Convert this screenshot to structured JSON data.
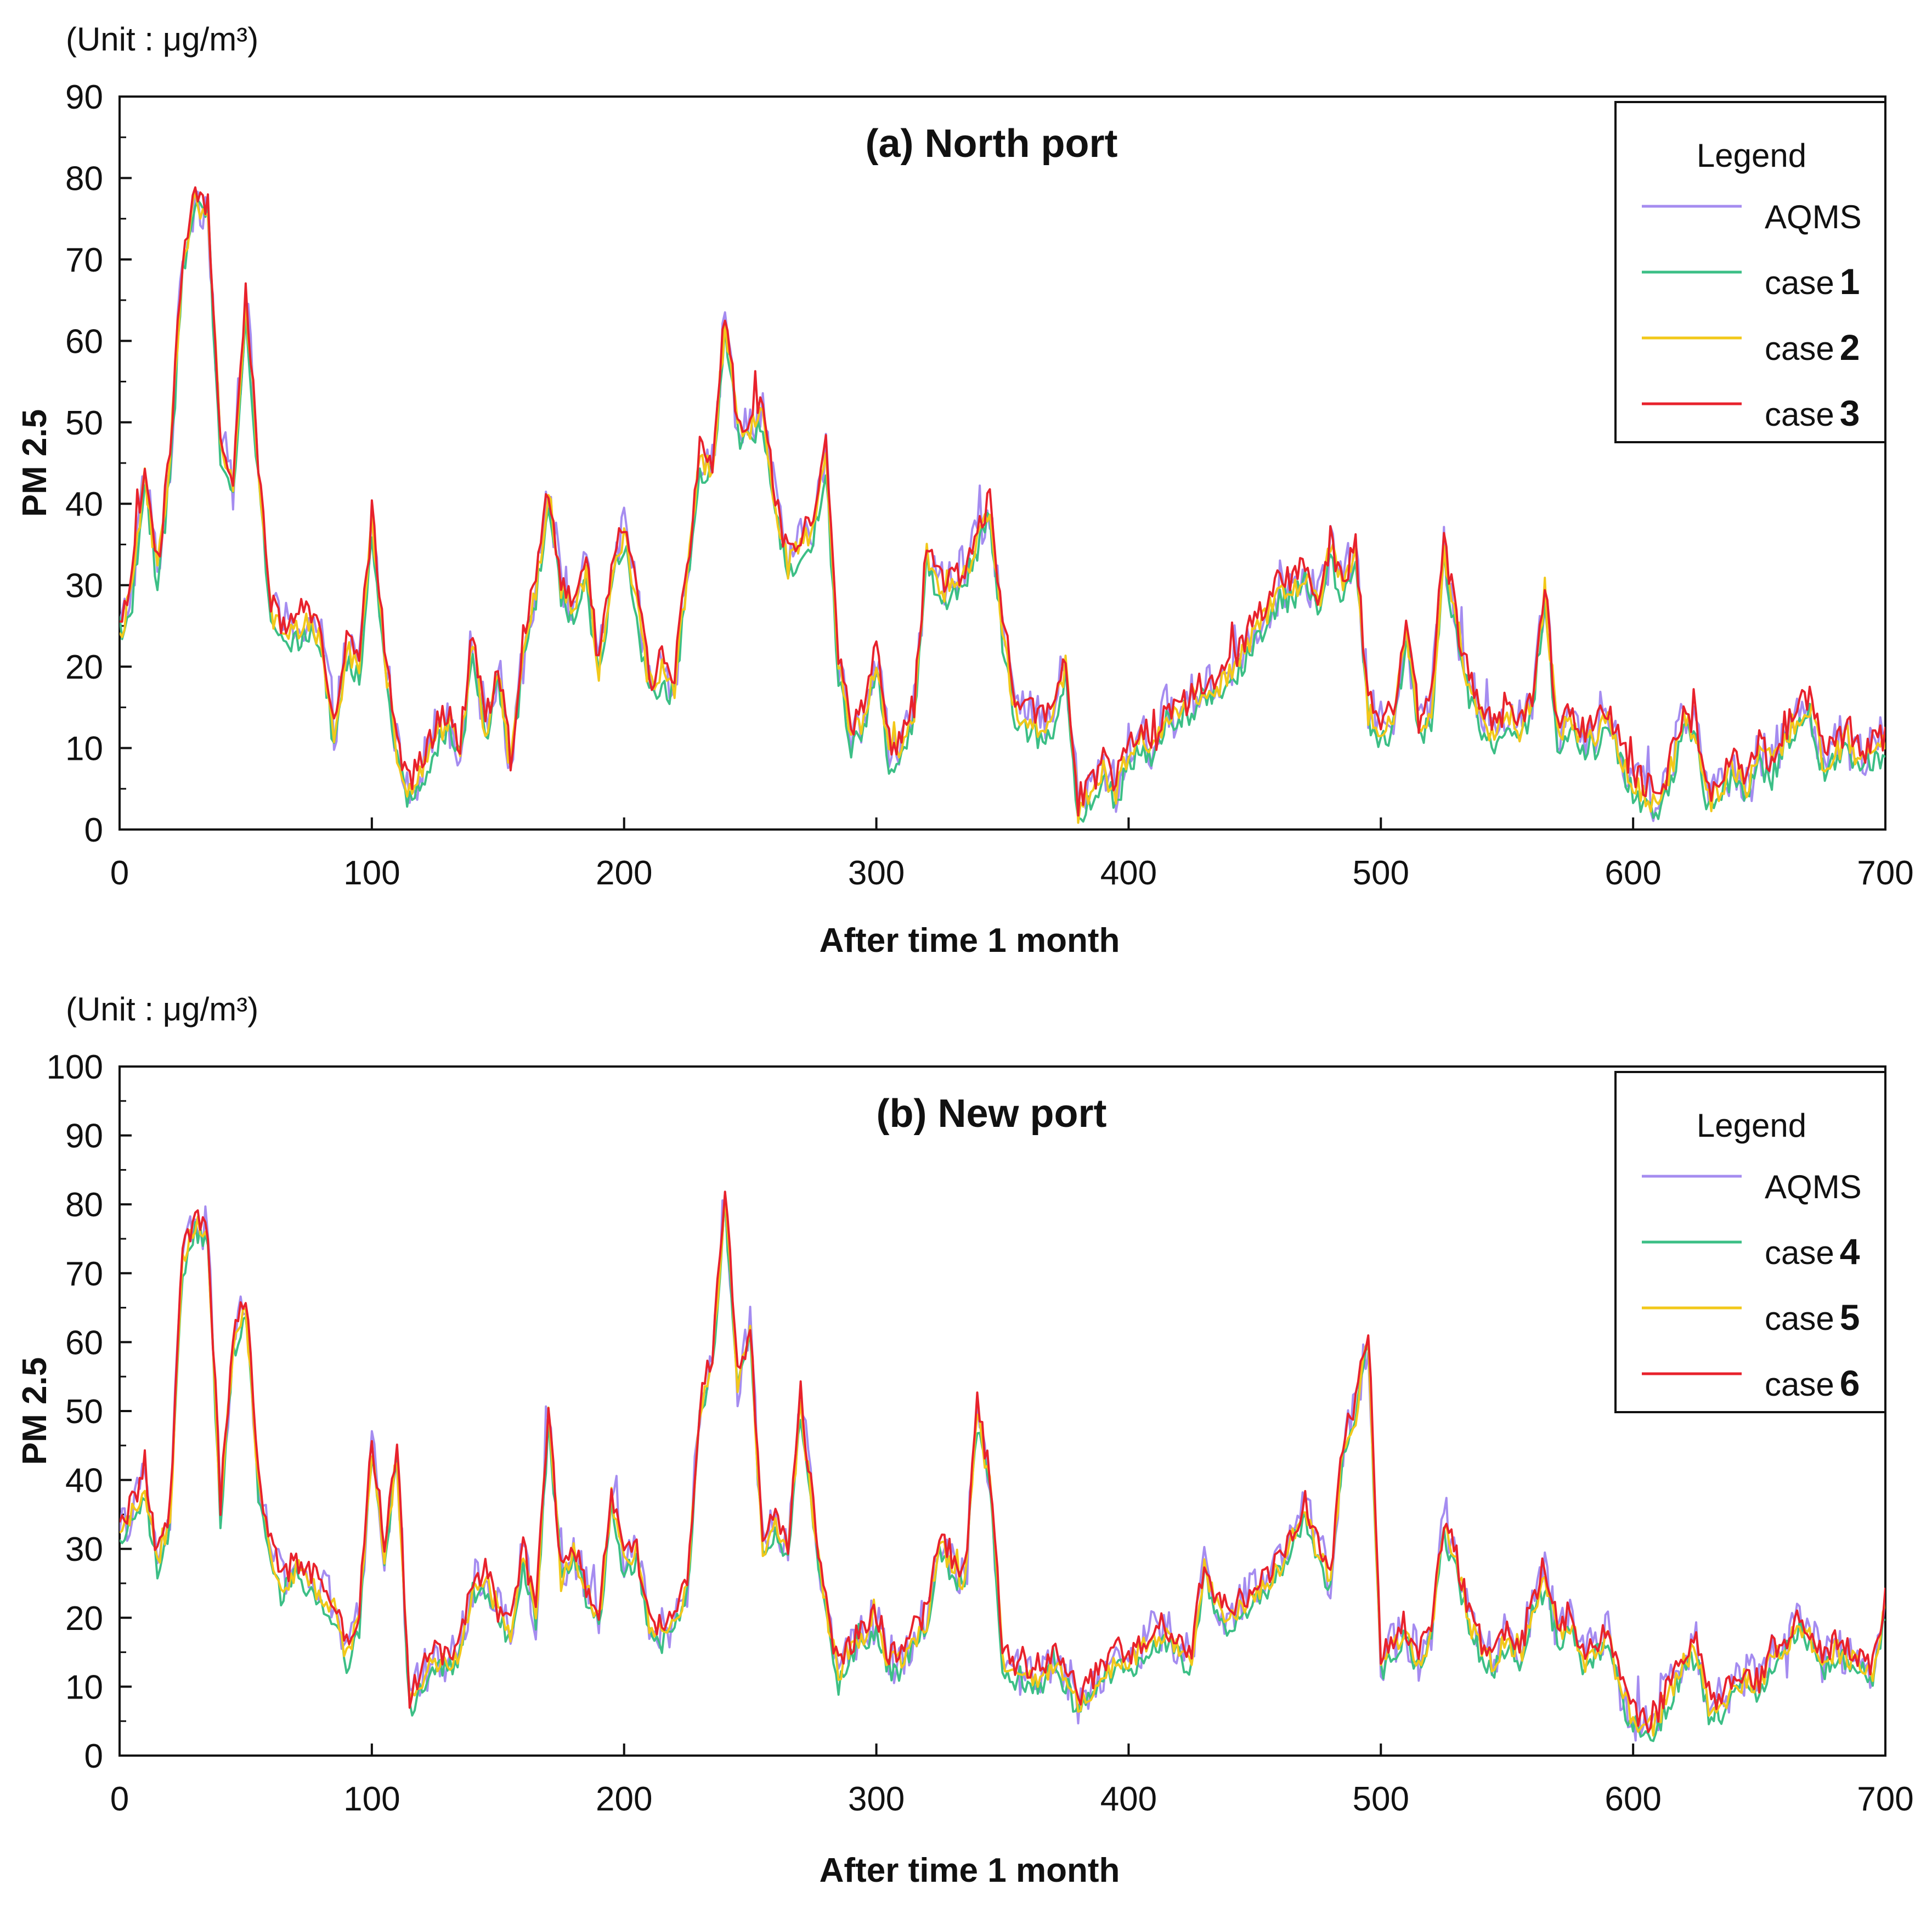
{
  "figure": {
    "description_hidden": false
  },
  "chart_data": [
    {
      "type": "line",
      "panel": "a",
      "title": "(a) North port",
      "unit_label": "(Unit : μg/m³)",
      "xlabel": "After time 1 month",
      "ylabel": "PM 2.5",
      "xlim": [
        0,
        700
      ],
      "ylim": [
        0,
        90
      ],
      "x_ticks": [
        "0",
        "100",
        "200",
        "300",
        "400",
        "500",
        "600",
        "700"
      ],
      "y_ticks": [
        "0",
        "10",
        "20",
        "30",
        "40",
        "50",
        "60",
        "70",
        "80",
        "90"
      ],
      "legend": {
        "title": "Legend",
        "position": "top-right",
        "entries": [
          {
            "prefix": "AQMS",
            "num": "",
            "color": "#a58cf0"
          },
          {
            "prefix": "case",
            "num": "1",
            "color": "#3cbf86"
          },
          {
            "prefix": "case",
            "num": "2",
            "color": "#f2c81a"
          },
          {
            "prefix": "case",
            "num": "3",
            "color": "#e8222c"
          }
        ]
      },
      "keypoints": {
        "x": [
          0,
          5,
          10,
          15,
          20,
          25,
          30,
          35,
          40,
          45,
          50,
          55,
          60,
          65,
          70,
          75,
          80,
          85,
          90,
          95,
          100,
          105,
          110,
          115,
          120,
          125,
          130,
          135,
          140,
          145,
          150,
          155,
          160,
          165,
          170,
          175,
          180,
          185,
          190,
          195,
          200,
          205,
          210,
          215,
          220,
          225,
          230,
          235,
          240,
          245,
          250,
          255,
          260,
          265,
          270,
          275,
          280,
          285,
          290,
          295,
          300,
          305,
          310,
          315,
          320,
          325,
          330,
          335,
          340,
          345,
          350,
          355,
          360,
          365,
          370,
          375,
          380,
          385,
          390,
          395,
          400,
          405,
          410,
          415,
          420,
          425,
          430,
          435,
          440,
          445,
          450,
          455,
          460,
          465,
          470,
          475,
          480,
          485,
          490,
          495,
          500,
          505,
          510,
          515,
          520,
          525,
          530,
          535,
          540,
          545,
          550,
          555,
          560,
          565,
          570,
          575,
          580,
          585,
          590,
          595,
          600,
          605,
          610,
          615,
          620,
          625,
          630,
          635,
          640,
          645,
          650,
          655,
          660,
          665,
          670,
          675,
          680,
          685,
          690,
          695,
          700
        ],
        "y": [
          24,
          30,
          44,
          32,
          45,
          70,
          78,
          76,
          48,
          42,
          66,
          45,
          27,
          25,
          25,
          26,
          24,
          12,
          22,
          20,
          38,
          22,
          10,
          5,
          8,
          12,
          14,
          10,
          24,
          12,
          20,
          8,
          23,
          30,
          42,
          30,
          28,
          32,
          20,
          32,
          37,
          28,
          18,
          20,
          18,
          32,
          46,
          45,
          63,
          50,
          50,
          52,
          40,
          33,
          35,
          38,
          46,
          20,
          12,
          14,
          22,
          10,
          10,
          15,
          35,
          30,
          30,
          32,
          36,
          40,
          25,
          15,
          14,
          13,
          14,
          21,
          3,
          5,
          8,
          5,
          10,
          12,
          10,
          15,
          14,
          16,
          18,
          18,
          20,
          22,
          25,
          27,
          30,
          30,
          32,
          28,
          35,
          30,
          35,
          15,
          13,
          14,
          25,
          13,
          15,
          35,
          25,
          18,
          14,
          12,
          15,
          13,
          16,
          30,
          12,
          14,
          12,
          12,
          14,
          10,
          6,
          5,
          3,
          8,
          14,
          12,
          4,
          6,
          8,
          6,
          10,
          8,
          12,
          14,
          16,
          9,
          10,
          12,
          9,
          10,
          11
        ]
      },
      "series_offsets": [
        {
          "name": "AQMS",
          "offset": 0.0,
          "noise": 3.2
        },
        {
          "name": "case 1",
          "offset": -1.8,
          "noise": 1.6
        },
        {
          "name": "case 2",
          "offset": -0.6,
          "noise": 1.6
        },
        {
          "name": "case 3",
          "offset": 0.6,
          "noise": 1.9
        }
      ]
    },
    {
      "type": "line",
      "panel": "b",
      "title": "(b) New port",
      "unit_label": "(Unit : μg/m³)",
      "xlabel": "After time 1 month",
      "ylabel": "PM 2.5",
      "xlim": [
        0,
        700
      ],
      "ylim": [
        0,
        100
      ],
      "x_ticks": [
        "0",
        "100",
        "200",
        "300",
        "400",
        "500",
        "600",
        "700"
      ],
      "y_ticks": [
        "0",
        "10",
        "20",
        "30",
        "40",
        "50",
        "60",
        "70",
        "80",
        "90",
        "100"
      ],
      "legend": {
        "title": "Legend",
        "position": "top-right",
        "entries": [
          {
            "prefix": "AQMS",
            "num": "",
            "color": "#a58cf0"
          },
          {
            "prefix": "case",
            "num": "4",
            "color": "#3cbf86"
          },
          {
            "prefix": "case",
            "num": "5",
            "color": "#f2c81a"
          },
          {
            "prefix": "case",
            "num": "6",
            "color": "#e8222c"
          }
        ]
      },
      "keypoints": {
        "x": [
          0,
          5,
          10,
          15,
          20,
          25,
          30,
          35,
          40,
          45,
          50,
          55,
          60,
          65,
          70,
          75,
          80,
          85,
          90,
          95,
          100,
          105,
          110,
          115,
          120,
          125,
          130,
          135,
          140,
          145,
          150,
          155,
          160,
          165,
          170,
          175,
          180,
          185,
          190,
          195,
          200,
          205,
          210,
          215,
          220,
          225,
          230,
          235,
          240,
          245,
          250,
          255,
          260,
          265,
          270,
          275,
          280,
          285,
          290,
          295,
          300,
          305,
          310,
          315,
          320,
          325,
          330,
          335,
          340,
          345,
          350,
          355,
          360,
          365,
          370,
          375,
          380,
          385,
          390,
          395,
          400,
          405,
          410,
          415,
          420,
          425,
          430,
          435,
          440,
          445,
          450,
          455,
          460,
          465,
          470,
          475,
          480,
          485,
          490,
          495,
          500,
          505,
          510,
          515,
          520,
          525,
          530,
          535,
          540,
          545,
          550,
          555,
          560,
          565,
          570,
          575,
          580,
          585,
          590,
          595,
          600,
          605,
          610,
          615,
          620,
          625,
          630,
          635,
          640,
          645,
          650,
          655,
          660,
          665,
          670,
          675,
          680,
          685,
          690,
          695,
          700
        ],
        "y": [
          32,
          36,
          40,
          28,
          35,
          72,
          78,
          76,
          36,
          60,
          66,
          40,
          30,
          25,
          28,
          26,
          24,
          22,
          15,
          20,
          45,
          30,
          44,
          8,
          12,
          14,
          14,
          16,
          25,
          26,
          22,
          18,
          30,
          20,
          50,
          27,
          30,
          24,
          20,
          38,
          28,
          30,
          20,
          18,
          20,
          25,
          50,
          58,
          82,
          54,
          62,
          30,
          35,
          30,
          52,
          35,
          22,
          12,
          16,
          18,
          20,
          14,
          14,
          18,
          20,
          32,
          28,
          26,
          50,
          40,
          15,
          12,
          12,
          12,
          14,
          12,
          8,
          10,
          12,
          14,
          14,
          16,
          18,
          18,
          16,
          14,
          28,
          22,
          20,
          22,
          24,
          26,
          28,
          32,
          36,
          30,
          26,
          45,
          50,
          62,
          14,
          16,
          18,
          14,
          18,
          34,
          28,
          20,
          16,
          14,
          18,
          14,
          22,
          26,
          18,
          20,
          14,
          16,
          18,
          10,
          6,
          4,
          6,
          10,
          14,
          16,
          8,
          8,
          10,
          12,
          10,
          15,
          16,
          20,
          18,
          14,
          16,
          15,
          14,
          12,
          22
        ]
      },
      "series_offsets": [
        {
          "name": "AQMS",
          "offset": 0.0,
          "noise": 3.5
        },
        {
          "name": "case 4",
          "offset": -1.6,
          "noise": 1.7
        },
        {
          "name": "case 5",
          "offset": -0.6,
          "noise": 1.7
        },
        {
          "name": "case 6",
          "offset": 0.7,
          "noise": 2.0
        }
      ]
    }
  ]
}
